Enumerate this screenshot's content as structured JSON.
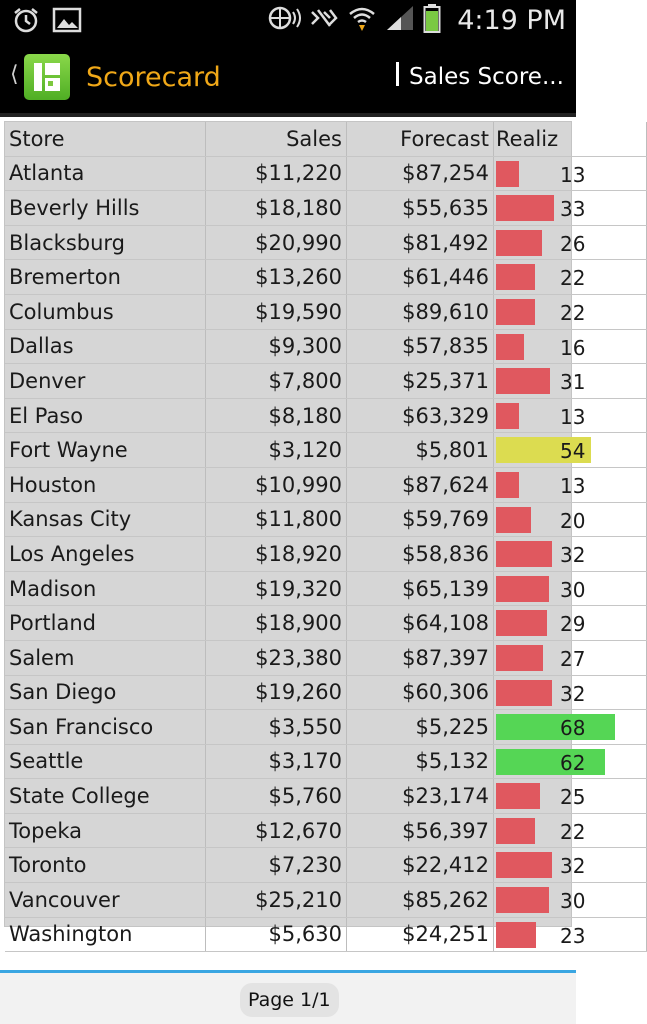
{
  "status_bar": {
    "time": "4:19 PM",
    "left_icons": [
      "alarm-icon",
      "image-icon"
    ],
    "right_icons": [
      "nfc-icon",
      "vibrate-icon",
      "wifi-icon",
      "signal-icon",
      "battery-icon"
    ]
  },
  "app_bar": {
    "title": "Scorecard",
    "report_title": "Sales Score...",
    "title_color": "#f0a818"
  },
  "table": {
    "headers": {
      "store": "Store",
      "sales": "Sales",
      "forecast": "Forecast",
      "realized": "Realiz"
    },
    "rows": [
      {
        "store": "Atlanta",
        "sales": "$11,220",
        "forecast": "$87,254",
        "realized": "13",
        "status": "red"
      },
      {
        "store": "Beverly Hills",
        "sales": "$18,180",
        "forecast": "$55,635",
        "realized": "33",
        "status": "red"
      },
      {
        "store": "Blacksburg",
        "sales": "$20,990",
        "forecast": "$81,492",
        "realized": "26",
        "status": "red"
      },
      {
        "store": "Bremerton",
        "sales": "$13,260",
        "forecast": "$61,446",
        "realized": "22",
        "status": "red"
      },
      {
        "store": "Columbus",
        "sales": "$19,590",
        "forecast": "$89,610",
        "realized": "22",
        "status": "red"
      },
      {
        "store": "Dallas",
        "sales": "$9,300",
        "forecast": "$57,835",
        "realized": "16",
        "status": "red"
      },
      {
        "store": "Denver",
        "sales": "$7,800",
        "forecast": "$25,371",
        "realized": "31",
        "status": "red"
      },
      {
        "store": "El Paso",
        "sales": "$8,180",
        "forecast": "$63,329",
        "realized": "13",
        "status": "red"
      },
      {
        "store": "Fort Wayne",
        "sales": "$3,120",
        "forecast": "$5,801",
        "realized": "54",
        "status": "yellow"
      },
      {
        "store": "Houston",
        "sales": "$10,990",
        "forecast": "$87,624",
        "realized": "13",
        "status": "red"
      },
      {
        "store": "Kansas City",
        "sales": "$11,800",
        "forecast": "$59,769",
        "realized": "20",
        "status": "red"
      },
      {
        "store": "Los Angeles",
        "sales": "$18,920",
        "forecast": "$58,836",
        "realized": "32",
        "status": "red"
      },
      {
        "store": "Madison",
        "sales": "$19,320",
        "forecast": "$65,139",
        "realized": "30",
        "status": "red"
      },
      {
        "store": "Portland",
        "sales": "$18,900",
        "forecast": "$64,108",
        "realized": "29",
        "status": "red"
      },
      {
        "store": "Salem",
        "sales": "$23,380",
        "forecast": "$87,397",
        "realized": "27",
        "status": "red"
      },
      {
        "store": "San Diego",
        "sales": "$19,260",
        "forecast": "$60,306",
        "realized": "32",
        "status": "red"
      },
      {
        "store": "San Francisco",
        "sales": "$3,550",
        "forecast": "$5,225",
        "realized": "68",
        "status": "green"
      },
      {
        "store": "Seattle",
        "sales": "$3,170",
        "forecast": "$5,132",
        "realized": "62",
        "status": "green"
      },
      {
        "store": "State College",
        "sales": "$5,760",
        "forecast": "$23,174",
        "realized": "25",
        "status": "red"
      },
      {
        "store": "Topeka",
        "sales": "$12,670",
        "forecast": "$56,397",
        "realized": "22",
        "status": "red"
      },
      {
        "store": "Toronto",
        "sales": "$7,230",
        "forecast": "$22,412",
        "realized": "32",
        "status": "red"
      },
      {
        "store": "Vancouver",
        "sales": "$25,210",
        "forecast": "$85,262",
        "realized": "30",
        "status": "red"
      },
      {
        "store": "Washington",
        "sales": "$5,630",
        "forecast": "$24,251",
        "realized": "23",
        "status": "red"
      }
    ]
  },
  "status_colors": {
    "red": "#e0585f",
    "yellow": "#dcdc50",
    "green": "#55d655"
  },
  "footer": {
    "page_label": "Page 1/1"
  }
}
